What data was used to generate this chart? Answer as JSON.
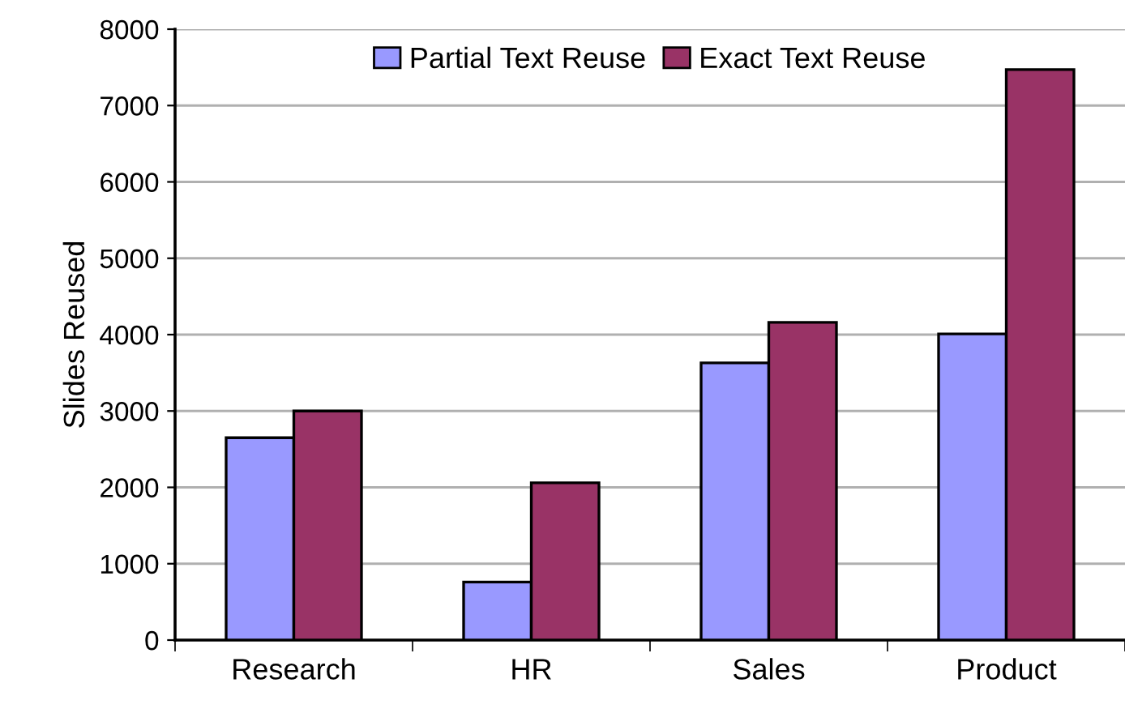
{
  "chart_data": {
    "type": "bar",
    "ylabel": "Slides Reused",
    "categories": [
      "Research",
      "HR",
      "Sales",
      "Product"
    ],
    "series": [
      {
        "name": "Partial Text Reuse",
        "color": "#9999ff",
        "values": [
          2650,
          760,
          3630,
          4010
        ]
      },
      {
        "name": "Exact Text Reuse",
        "color": "#993366",
        "values": [
          3000,
          2060,
          4160,
          7470
        ]
      }
    ],
    "ylim": [
      0,
      8000
    ],
    "yticks": [
      0,
      1000,
      2000,
      3000,
      4000,
      5000,
      6000,
      7000,
      8000
    ],
    "grid": "y",
    "legend": "top"
  }
}
